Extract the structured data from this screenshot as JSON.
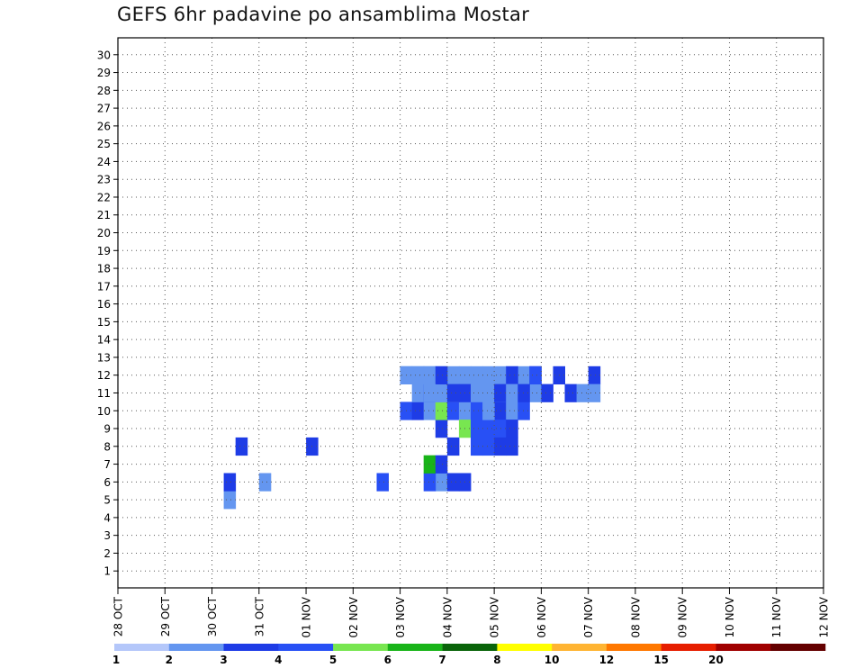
{
  "chart_data": {
    "type": "heatmap",
    "title": "GEFS 6hr padavine po ansamblima Mostar",
    "x_tick_labels": [
      "28 OCT",
      "29 OCT",
      "30 OCT",
      "31 OCT",
      "01 NOV",
      "02 NOV",
      "03 NOV",
      "04 NOV",
      "05 NOV",
      "06 NOV",
      "07 NOV",
      "08 NOV",
      "09 NOV",
      "10 NOV",
      "11 NOV",
      "12 NOV"
    ],
    "y_tick_labels": [
      "1",
      "2",
      "3",
      "4",
      "5",
      "6",
      "7",
      "8",
      "9",
      "10",
      "11",
      "12",
      "13",
      "14",
      "15",
      "16",
      "17",
      "18",
      "19",
      "20",
      "21",
      "22",
      "23",
      "24",
      "25",
      "26",
      "27",
      "28",
      "29",
      "30"
    ],
    "time_step_hours": 6,
    "x_range": [
      "28 OCT 00Z",
      "12 NOV 00Z"
    ],
    "y_range": [
      1,
      30
    ],
    "grid": "dotted",
    "colorbar": {
      "labels": [
        "1",
        "2",
        "3",
        "4",
        "5",
        "6",
        "7",
        "8",
        "10",
        "12",
        "15",
        "20"
      ],
      "colors": [
        "#b4c7fa",
        "#6496f0",
        "#1e3ce6",
        "#2850f5",
        "#78e650",
        "#19b419",
        "#0a640a",
        "#ffff00",
        "#ffb432",
        "#ff7800",
        "#e61e00",
        "#a00000",
        "#640000"
      ]
    },
    "series": [
      {
        "name": "1",
        "values": [
          [
            27,
            6,
            1
          ],
          [
            9,
            5,
            1
          ],
          [
            9,
            6,
            2
          ],
          [
            10,
            8,
            2
          ],
          [
            12,
            6,
            1
          ],
          [
            16,
            8,
            2
          ],
          [
            22,
            6,
            3
          ]
        ]
      },
      {
        "name": "2",
        "values": [
          [
            26,
            6,
            3
          ],
          [
            26,
            7,
            5
          ],
          [
            27,
            7,
            2
          ],
          [
            28,
            6,
            2
          ],
          [
            29,
            6,
            2
          ],
          [
            28,
            8,
            2
          ],
          [
            27,
            9,
            2
          ]
        ]
      },
      {
        "name": "3",
        "values": [
          [
            24,
            10,
            3
          ],
          [
            25,
            10,
            2
          ],
          [
            25,
            11,
            1
          ],
          [
            26,
            10,
            1
          ],
          [
            26,
            11,
            3
          ],
          [
            27,
            10,
            4
          ],
          [
            28,
            10,
            3
          ],
          [
            27,
            11,
            1
          ],
          [
            28,
            11,
            1
          ],
          [
            29,
            10,
            1
          ],
          [
            30,
            10,
            1
          ],
          [
            31,
            10,
            1
          ],
          [
            32,
            10,
            2
          ],
          [
            33,
            10,
            1
          ],
          [
            29,
            9,
            4
          ],
          [
            30,
            9,
            3
          ],
          [
            30,
            8,
            3
          ],
          [
            31,
            8,
            3
          ],
          [
            31,
            9,
            3
          ],
          [
            32,
            9,
            3
          ],
          [
            32,
            8,
            2
          ],
          [
            33,
            8,
            2
          ],
          [
            33,
            9,
            2
          ]
        ]
      },
      {
        "name": "4",
        "values": [
          [
            24,
            12,
            1
          ],
          [
            27,
            12,
            1
          ],
          [
            28,
            12,
            1
          ],
          [
            29,
            12,
            1
          ],
          [
            30,
            12,
            1
          ],
          [
            31,
            12,
            1
          ],
          [
            33,
            12,
            1
          ],
          [
            32,
            11,
            3
          ],
          [
            33,
            11,
            1
          ]
        ]
      },
      {
        "name": "5",
        "values": [
          [
            25,
            12,
            1
          ],
          [
            26,
            12,
            1
          ],
          [
            27,
            11,
            1
          ],
          [
            28,
            11,
            1
          ],
          [
            30,
            10,
            3
          ],
          [
            31,
            10,
            1
          ],
          [
            32,
            11,
            1
          ],
          [
            33,
            11,
            1
          ],
          [
            34,
            12,
            1
          ],
          [
            32,
            12,
            1
          ],
          [
            33,
            12,
            2
          ],
          [
            34,
            11,
            1
          ],
          [
            34,
            10,
            3
          ],
          [
            35,
            12,
            2
          ],
          [
            35,
            11,
            1
          ]
        ]
      },
      {
        "name": "6",
        "values": [
          [
            24,
            12,
            1
          ],
          [
            25,
            12,
            1
          ],
          [
            26,
            12,
            1
          ],
          [
            27,
            12,
            2
          ],
          [
            26,
            11,
            1
          ],
          [
            28,
            11,
            2
          ],
          [
            29,
            11,
            2
          ],
          [
            30,
            11,
            1
          ],
          [
            31,
            11,
            1
          ],
          [
            32,
            11,
            2
          ],
          [
            33,
            11,
            1
          ],
          [
            34,
            11,
            2
          ],
          [
            35,
            12,
            3
          ],
          [
            36,
            11,
            2
          ],
          [
            37,
            12,
            2
          ],
          [
            38,
            11,
            2
          ],
          [
            39,
            11,
            1
          ],
          [
            40,
            12,
            2
          ],
          [
            40,
            11,
            1
          ]
        ]
      }
    ]
  }
}
